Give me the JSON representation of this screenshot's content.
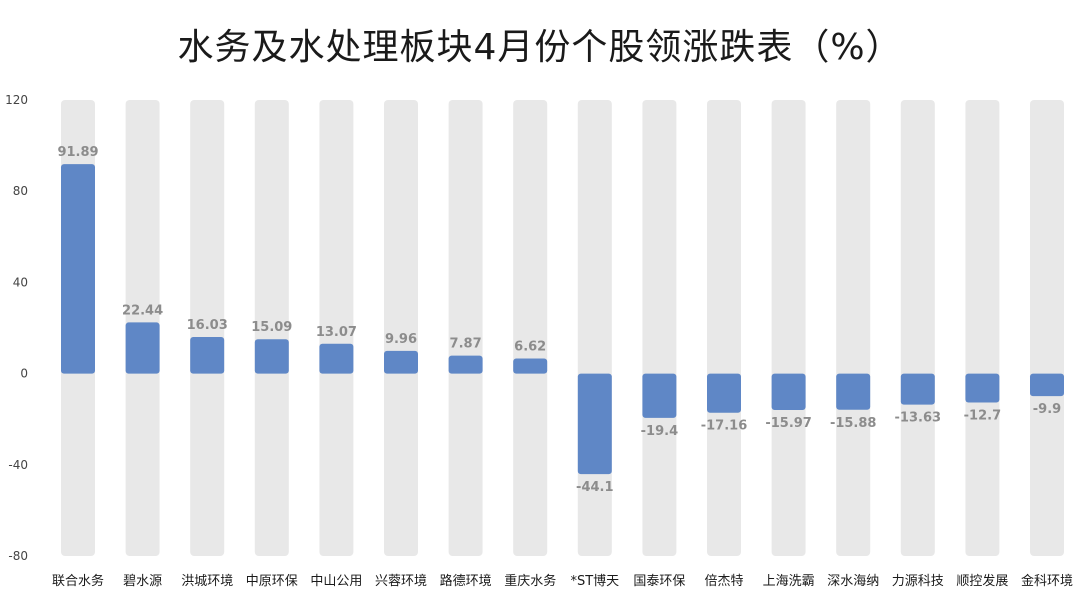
{
  "chart_data": {
    "type": "bar",
    "title": "水务及水处理板块4月份个股领涨跌表（%）",
    "xlabel": "",
    "ylabel": "",
    "ylim": [
      -80,
      120
    ],
    "yticks": [
      120,
      80,
      40,
      0,
      -40,
      -80
    ],
    "grid": false,
    "legend": "none",
    "categories": [
      "联合水务",
      "碧水源",
      "洪城环境",
      "中原环保",
      "中山公用",
      "兴蓉环境",
      "路德环境",
      "重庆水务",
      "*ST博天",
      "国泰环保",
      "倍杰特",
      "上海洗霸",
      "深水海纳",
      "力源科技",
      "顺控发展",
      "金科环境"
    ],
    "values": [
      91.89,
      22.44,
      16.03,
      15.09,
      13.07,
      9.96,
      7.87,
      6.62,
      -44.1,
      -19.4,
      -17.16,
      -15.97,
      -15.88,
      -13.63,
      -12.7,
      -9.9
    ],
    "value_labels": [
      "91.89",
      "22.44",
      "16.03",
      "15.09",
      "13.07",
      "9.96",
      "7.87",
      "6.62",
      "-44.1",
      "-19.4",
      "-17.16",
      "-15.97",
      "-15.88",
      "-13.63",
      "-12.7",
      "-9.9"
    ],
    "colors": {
      "bar": "#5f87c6",
      "track": "#e8e8e8",
      "label": "#8c8c8c"
    }
  }
}
